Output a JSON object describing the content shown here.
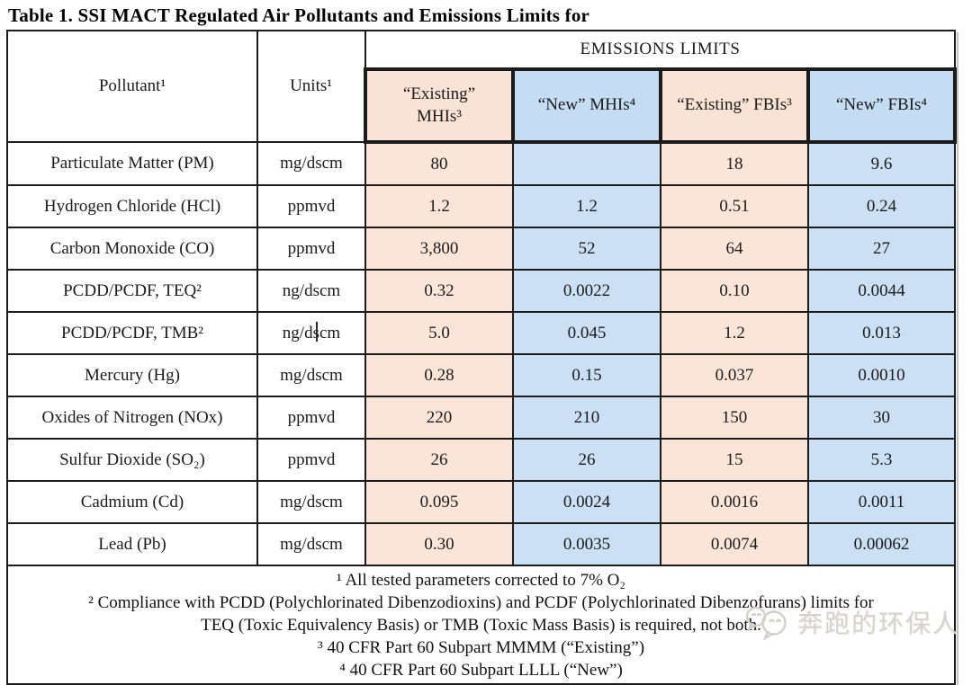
{
  "title": "Table 1. SSI MACT Regulated Air Pollutants and Emissions Limits for",
  "table": {
    "header": {
      "pollutant": "Pollutant¹",
      "units": "Units¹",
      "emissions_limits": "EMISSIONS LIMITS",
      "columns": [
        {
          "label": "“Existing”\nMHIs³",
          "scheme": "peach"
        },
        {
          "label": "“New” MHIs⁴",
          "scheme": "blue"
        },
        {
          "label": "“Existing” FBIs³",
          "scheme": "peach"
        },
        {
          "label": "“New” FBIs⁴",
          "scheme": "blue"
        }
      ]
    },
    "rows": [
      {
        "pollutant": "Particulate Matter (PM)",
        "units": "mg/dscm",
        "existing_mhi": "80",
        "new_mhi": "",
        "existing_fbi": "18",
        "new_fbi": "9.6"
      },
      {
        "pollutant": "Hydrogen Chloride (HCl)",
        "units": "ppmvd",
        "existing_mhi": "1.2",
        "new_mhi": "1.2",
        "existing_fbi": "0.51",
        "new_fbi": "0.24"
      },
      {
        "pollutant": "Carbon Monoxide (CO)",
        "units": "ppmvd",
        "existing_mhi": "3,800",
        "new_mhi": "52",
        "existing_fbi": "64",
        "new_fbi": "27"
      },
      {
        "pollutant": "PCDD/PCDF, TEQ²",
        "units": "ng/dscm",
        "existing_mhi": "0.32",
        "new_mhi": "0.0022",
        "existing_fbi": "0.10",
        "new_fbi": "0.0044"
      },
      {
        "pollutant": "PCDD/PCDF, TMB²",
        "units": "ng/dscm",
        "existing_mhi": "5.0",
        "new_mhi": "0.045",
        "existing_fbi": "1.2",
        "new_fbi": "0.013"
      },
      {
        "pollutant": "Mercury (Hg)",
        "units": "mg/dscm",
        "existing_mhi": "0.28",
        "new_mhi": "0.15",
        "existing_fbi": "0.037",
        "new_fbi": "0.0010"
      },
      {
        "pollutant": "Oxides of Nitrogen (NOx)",
        "units": "ppmvd",
        "existing_mhi": "220",
        "new_mhi": "210",
        "existing_fbi": "150",
        "new_fbi": "30"
      },
      {
        "pollutant": "Sulfur Dioxide (SO₂)",
        "units": "ppmvd",
        "existing_mhi": "26",
        "new_mhi": "26",
        "existing_fbi": "15",
        "new_fbi": "5.3"
      },
      {
        "pollutant": "Cadmium (Cd)",
        "units": "mg/dscm",
        "existing_mhi": "0.095",
        "new_mhi": "0.0024",
        "existing_fbi": "0.0016",
        "new_fbi": "0.0011"
      },
      {
        "pollutant": "Lead (Pb)",
        "units": "mg/dscm",
        "existing_mhi": "0.30",
        "new_mhi": "0.0035",
        "existing_fbi": "0.0074",
        "new_fbi": "0.00062"
      }
    ],
    "footnotes": [
      "¹ All tested parameters corrected to 7% O₂",
      "² Compliance with PCDD (Polychlorinated Dibenzodioxins) and PCDF (Polychlorinated Dibenzofurans) limits for\nTEQ (Toxic Equivalency Basis) or TMB (Toxic Mass Basis) is required, not both.",
      "³ 40 CFR Part 60 Subpart MMMM (“Existing”)",
      "⁴ 40 CFR Part 60 Subpart LLLL (“New”)"
    ]
  },
  "watermark": {
    "text": "奔跑的环保人"
  },
  "colors": {
    "existing_cell_bg": "#fbe5d8",
    "new_cell_bg": "#cbe0f4",
    "colored_border": "#4e7899",
    "plain_border": "#1b1b1b",
    "existing_text": "#7e6e64",
    "new_text": "#44546a",
    "watermark_text": "#d7d3cc"
  }
}
